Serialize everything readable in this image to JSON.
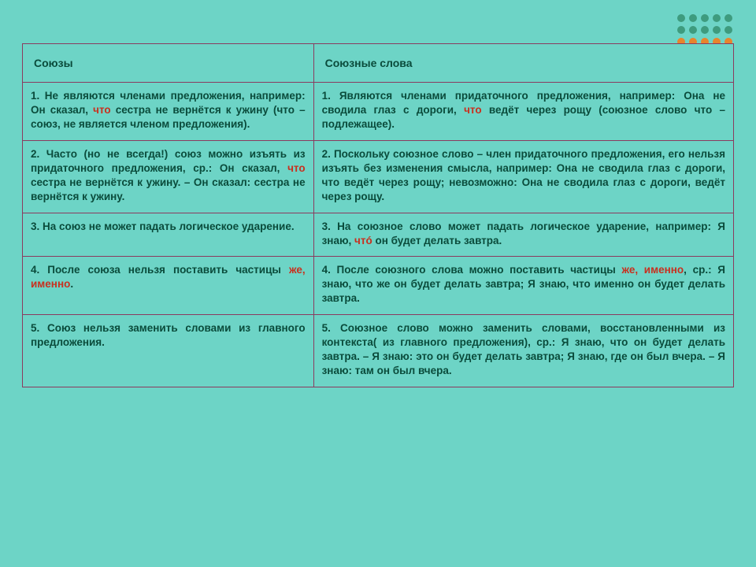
{
  "decor": {
    "dot_colors": [
      "#3e9b7e",
      "#3e9b7e",
      "#3e9b7e",
      "#3e9b7e",
      "#3e9b7e",
      "#3e9b7e",
      "#3e9b7e",
      "#3e9b7e",
      "#3e9b7e",
      "#3e9b7e",
      "#e8842c",
      "#e8842c",
      "#e8842c",
      "#e8842c",
      "#e8842c"
    ]
  },
  "headers": {
    "left": "Союзы",
    "right": "Союзные слова"
  },
  "rows": [
    {
      "left": {
        "parts": [
          {
            "t": "1. Не являются членами предложения, например: Он сказал, "
          },
          {
            "t": "что",
            "hl": true
          },
          {
            "t": " сестра не вернётся к ужину (что – союз, не является членом предложения)."
          }
        ]
      },
      "right": {
        "parts": [
          {
            "t": "1. Являются членами придаточного предложения, например: Она не сводила глаз с дороги, "
          },
          {
            "t": "что",
            "hl": true
          },
          {
            "t": " ведёт через рощу (союзное слово что – подлежащее)."
          }
        ]
      }
    },
    {
      "left": {
        "parts": [
          {
            "t": "2. Часто (но не всегда!) союз можно изъять из придаточного предложения, ср.: Он сказал, "
          },
          {
            "t": "что",
            "hl": true
          },
          {
            "t": " сестра не вернётся к ужину. – Он сказал: сестра не вернётся к ужину."
          }
        ]
      },
      "right": {
        "parts": [
          {
            "t": "2. Поскольку союзное слово – член придаточного предложения, его нельзя изъять без изменения смысла, например: Она не сводила глаз с дороги, что ведёт через рощу; невозможно: Она не сводила глаз с дороги, ведёт через рощу."
          }
        ]
      }
    },
    {
      "left": {
        "parts": [
          {
            "t": "3. На союз не может падать логическое ударение."
          }
        ]
      },
      "right": {
        "parts": [
          {
            "t": "3. На союзное слово может падать логическое ударение, например: Я знаю, "
          },
          {
            "t": "чтó",
            "hl": true
          },
          {
            "t": " он будет делать завтра."
          }
        ]
      }
    },
    {
      "left": {
        "parts": [
          {
            "t": "4. После союза нельзя поставить частицы "
          },
          {
            "t": "же, именно",
            "hl": true
          },
          {
            "t": "."
          }
        ]
      },
      "right": {
        "parts": [
          {
            "t": "4. После союзного слова можно поставить частицы "
          },
          {
            "t": "же, именно",
            "hl": true
          },
          {
            "t": ", ср.: Я знаю, что же он будет делать завтра; Я знаю, что именно он будет делать завтра."
          }
        ]
      }
    },
    {
      "left": {
        "parts": [
          {
            "t": "5. Союз нельзя заменить словами из главного предложения."
          }
        ]
      },
      "right": {
        "parts": [
          {
            "t": "5. Союзное слово можно заменить словами, восстановленными из контекста( из главного предложения), ср.: Я знаю, что он будет делать завтра. – Я знаю: это он будет делать завтра; Я знаю, где он был вчера. – Я знаю: там он был вчера."
          }
        ]
      }
    }
  ]
}
